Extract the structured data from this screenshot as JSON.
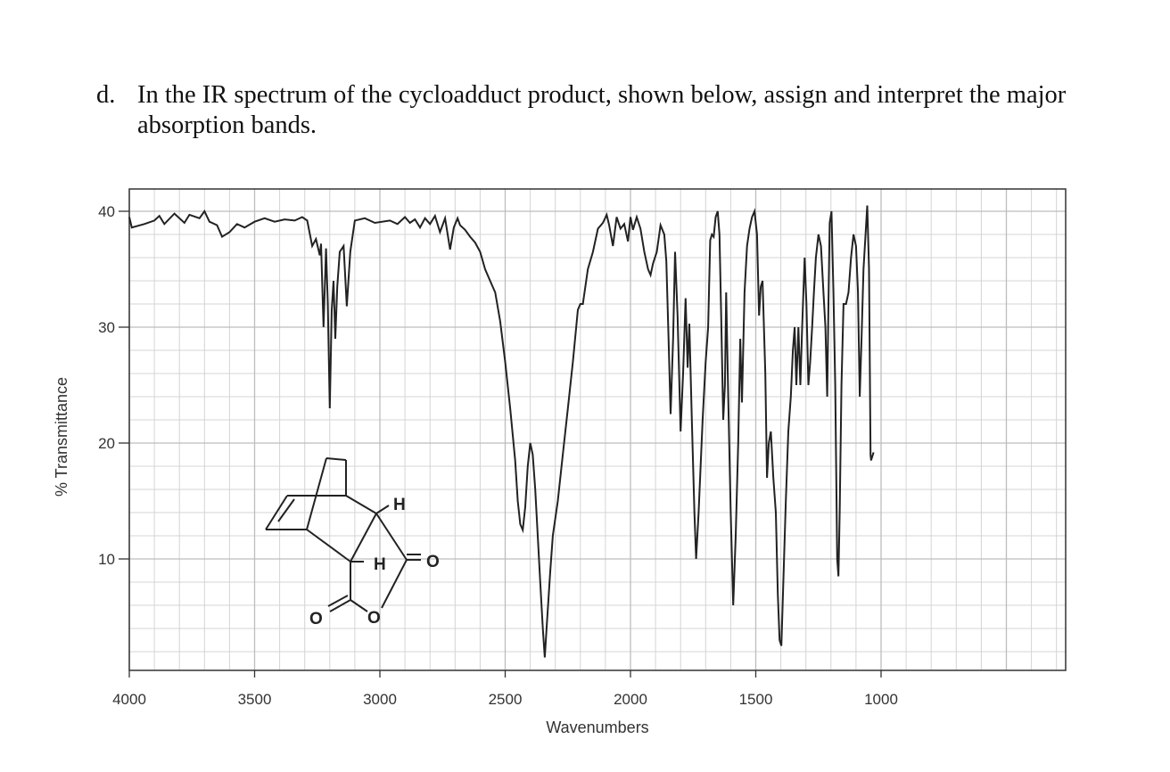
{
  "question": {
    "letter": "d.",
    "text": "In the IR spectrum of the cycloadduct product, shown below, assign and interpret the major absorption bands."
  },
  "chart_data": {
    "type": "line",
    "xlabel": "Wavenumbers",
    "ylabel": "% Transmittance",
    "xlim": [
      4000,
      550
    ],
    "ylim": [
      0,
      42
    ],
    "x_reversed": true,
    "grid": true,
    "x_ticks": [
      "4000",
      "3500",
      "3000",
      "2500",
      "2000",
      "1500",
      "1000"
    ],
    "y_ticks": [
      "10",
      "20",
      "30",
      "40"
    ],
    "series": [
      {
        "values": [
          [
            4000,
            39.5
          ],
          [
            3990,
            38.6
          ],
          [
            3940,
            38.9
          ],
          [
            3900,
            39.2
          ],
          [
            3880,
            39.6
          ],
          [
            3860,
            38.9
          ],
          [
            3820,
            39.8
          ],
          [
            3780,
            39.0
          ],
          [
            3760,
            39.7
          ],
          [
            3720,
            39.4
          ],
          [
            3700,
            40.0
          ],
          [
            3680,
            39.1
          ],
          [
            3650,
            38.8
          ],
          [
            3630,
            37.8
          ],
          [
            3600,
            38.2
          ],
          [
            3570,
            38.9
          ],
          [
            3540,
            38.6
          ],
          [
            3500,
            39.1
          ],
          [
            3460,
            39.4
          ],
          [
            3420,
            39.1
          ],
          [
            3380,
            39.3
          ],
          [
            3340,
            39.2
          ],
          [
            3310,
            39.5
          ],
          [
            3290,
            39.2
          ],
          [
            3270,
            37.0
          ],
          [
            3255,
            37.6
          ],
          [
            3240,
            36.2
          ],
          [
            3235,
            37.2
          ],
          [
            3225,
            30.0
          ],
          [
            3215,
            36.8
          ],
          [
            3208,
            32.0
          ],
          [
            3200,
            23.0
          ],
          [
            3192,
            31.5
          ],
          [
            3185,
            34.0
          ],
          [
            3178,
            29.0
          ],
          [
            3170,
            33.5
          ],
          [
            3160,
            36.5
          ],
          [
            3145,
            37.0
          ],
          [
            3132,
            31.8
          ],
          [
            3118,
            36.5
          ],
          [
            3100,
            39.2
          ],
          [
            3060,
            39.4
          ],
          [
            3020,
            39.0
          ],
          [
            2960,
            39.2
          ],
          [
            2930,
            38.9
          ],
          [
            2900,
            39.5
          ],
          [
            2880,
            39.0
          ],
          [
            2860,
            39.3
          ],
          [
            2840,
            38.6
          ],
          [
            2820,
            39.4
          ],
          [
            2800,
            38.9
          ],
          [
            2780,
            39.6
          ],
          [
            2760,
            38.2
          ],
          [
            2740,
            39.4
          ],
          [
            2720,
            36.7
          ],
          [
            2705,
            38.6
          ],
          [
            2690,
            39.4
          ],
          [
            2680,
            38.8
          ],
          [
            2660,
            38.4
          ],
          [
            2640,
            37.8
          ],
          [
            2620,
            37.3
          ],
          [
            2600,
            36.5
          ],
          [
            2580,
            35.0
          ],
          [
            2560,
            34.0
          ],
          [
            2540,
            33.0
          ],
          [
            2520,
            30.5
          ],
          [
            2500,
            27.0
          ],
          [
            2480,
            23.0
          ],
          [
            2460,
            18.5
          ],
          [
            2450,
            15.0
          ],
          [
            2440,
            13.0
          ],
          [
            2430,
            12.5
          ],
          [
            2420,
            14.5
          ],
          [
            2410,
            18.0
          ],
          [
            2400,
            20.0
          ],
          [
            2390,
            19.0
          ],
          [
            2380,
            16.0
          ],
          [
            2370,
            12.0
          ],
          [
            2360,
            8.0
          ],
          [
            2350,
            4.0
          ],
          [
            2342,
            1.5
          ],
          [
            2335,
            4.0
          ],
          [
            2320,
            9.0
          ],
          [
            2310,
            12.0
          ],
          [
            2290,
            15.0
          ],
          [
            2270,
            19.0
          ],
          [
            2250,
            23.0
          ],
          [
            2230,
            27.0
          ],
          [
            2210,
            31.5
          ],
          [
            2200,
            32.0
          ],
          [
            2190,
            32.0
          ],
          [
            2170,
            35.0
          ],
          [
            2150,
            36.5
          ],
          [
            2130,
            38.5
          ],
          [
            2110,
            39.0
          ],
          [
            2095,
            39.7
          ],
          [
            2085,
            38.8
          ],
          [
            2070,
            37.0
          ],
          [
            2055,
            39.5
          ],
          [
            2040,
            38.5
          ],
          [
            2025,
            38.9
          ],
          [
            2010,
            37.4
          ],
          [
            2000,
            39.5
          ],
          [
            1990,
            38.4
          ],
          [
            1975,
            39.5
          ],
          [
            1960,
            38.5
          ],
          [
            1945,
            36.5
          ],
          [
            1930,
            35.0
          ],
          [
            1920,
            34.5
          ],
          [
            1910,
            35.5
          ],
          [
            1895,
            36.5
          ],
          [
            1880,
            38.8
          ],
          [
            1865,
            38.0
          ],
          [
            1857,
            35.7
          ],
          [
            1848,
            29.0
          ],
          [
            1840,
            22.5
          ],
          [
            1830,
            29.0
          ],
          [
            1822,
            36.5
          ],
          [
            1812,
            31.0
          ],
          [
            1800,
            21.0
          ],
          [
            1790,
            26.0
          ],
          [
            1780,
            32.5
          ],
          [
            1772,
            26.5
          ],
          [
            1765,
            30.3
          ],
          [
            1755,
            22.0
          ],
          [
            1745,
            14.0
          ],
          [
            1738,
            10.0
          ],
          [
            1728,
            14.0
          ],
          [
            1712,
            22.0
          ],
          [
            1700,
            27.0
          ],
          [
            1690,
            30.0
          ],
          [
            1682,
            37.5
          ],
          [
            1675,
            38.0
          ],
          [
            1668,
            37.8
          ],
          [
            1660,
            39.5
          ],
          [
            1652,
            40.0
          ],
          [
            1645,
            38.0
          ],
          [
            1638,
            31.0
          ],
          [
            1630,
            22.0
          ],
          [
            1623,
            25.0
          ],
          [
            1618,
            33.0
          ],
          [
            1610,
            24.0
          ],
          [
            1600,
            14.0
          ],
          [
            1590,
            6.0
          ],
          [
            1580,
            12.0
          ],
          [
            1570,
            20.0
          ],
          [
            1562,
            29.0
          ],
          [
            1555,
            23.5
          ],
          [
            1545,
            33.0
          ],
          [
            1535,
            37.0
          ],
          [
            1525,
            38.5
          ],
          [
            1515,
            39.5
          ],
          [
            1505,
            40.0
          ],
          [
            1495,
            38.0
          ],
          [
            1487,
            31.0
          ],
          [
            1480,
            33.5
          ],
          [
            1473,
            34.0
          ],
          [
            1462,
            26.0
          ],
          [
            1455,
            17.0
          ],
          [
            1448,
            20.0
          ],
          [
            1440,
            21.0
          ],
          [
            1430,
            17.0
          ],
          [
            1420,
            14.0
          ],
          [
            1412,
            7.0
          ],
          [
            1405,
            3.0
          ],
          [
            1398,
            2.5
          ],
          [
            1390,
            8.0
          ],
          [
            1380,
            15.0
          ],
          [
            1370,
            21.0
          ],
          [
            1360,
            24.0
          ],
          [
            1352,
            28.0
          ],
          [
            1345,
            30.0
          ],
          [
            1338,
            25.0
          ],
          [
            1330,
            30.0
          ],
          [
            1322,
            25.0
          ],
          [
            1315,
            30.0
          ],
          [
            1305,
            36.0
          ],
          [
            1298,
            32.0
          ],
          [
            1290,
            25.0
          ],
          [
            1283,
            27.0
          ],
          [
            1275,
            30.0
          ],
          [
            1268,
            33.0
          ],
          [
            1260,
            36.0
          ],
          [
            1250,
            38.0
          ],
          [
            1240,
            37.0
          ],
          [
            1230,
            33.0
          ],
          [
            1222,
            30.0
          ],
          [
            1215,
            24.0
          ],
          [
            1210,
            32.0
          ],
          [
            1205,
            39.0
          ],
          [
            1198,
            40.0
          ],
          [
            1190,
            33.0
          ],
          [
            1183,
            25.0
          ],
          [
            1175,
            10.0
          ],
          [
            1170,
            8.5
          ],
          [
            1165,
            14.0
          ],
          [
            1158,
            25.0
          ],
          [
            1150,
            32.0
          ],
          [
            1140,
            32.0
          ],
          [
            1130,
            33.0
          ],
          [
            1120,
            36.0
          ],
          [
            1110,
            38.0
          ],
          [
            1100,
            37.0
          ],
          [
            1092,
            33.0
          ],
          [
            1085,
            24.0
          ],
          [
            1078,
            29.0
          ],
          [
            1070,
            35.0
          ],
          [
            1062,
            38.0
          ],
          [
            1055,
            40.5
          ],
          [
            1048,
            35.0
          ],
          [
            1042,
            19.0
          ],
          [
            1040,
            18.5
          ],
          [
            1030,
            19.2
          ]
        ]
      }
    ]
  },
  "structure": {
    "h_top": "H",
    "h_mid": "H",
    "o_right": "O",
    "o_ring": "O",
    "o_left": "O"
  }
}
